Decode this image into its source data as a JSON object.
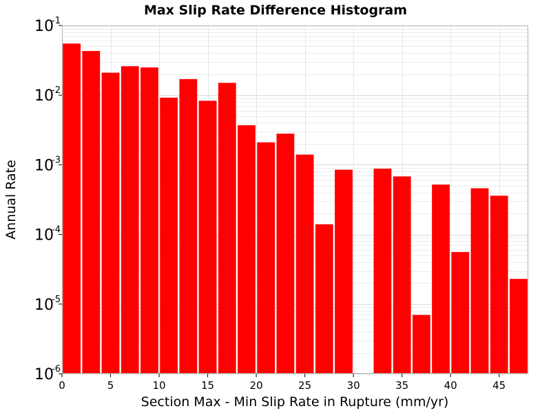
{
  "chart_data": {
    "type": "bar",
    "title": "Max Slip Rate Difference Histogram",
    "xlabel": "Section Max - Min Slip Rate in Rupture (mm/yr)",
    "ylabel": "Annual Rate",
    "yscale": "log",
    "xlim": [
      0,
      48
    ],
    "ylim": [
      1e-06,
      0.1
    ],
    "bin_width": 2,
    "x_ticks": [
      "0",
      "5",
      "10",
      "15",
      "20",
      "25",
      "30",
      "35",
      "40",
      "45"
    ],
    "y_ticks": [
      {
        "base": "10",
        "exp": "-6"
      },
      {
        "base": "10",
        "exp": "-5"
      },
      {
        "base": "10",
        "exp": "-4"
      },
      {
        "base": "10",
        "exp": "-3"
      },
      {
        "base": "10",
        "exp": "-2"
      },
      {
        "base": "10",
        "exp": "-1"
      }
    ],
    "grid": true,
    "bar_color": "#ff0000",
    "series": [
      {
        "bin_centers": [
          1,
          3,
          5,
          7,
          9,
          11,
          13,
          15,
          17,
          19,
          21,
          23,
          25,
          27,
          29,
          31,
          33,
          35,
          37,
          39,
          41,
          43,
          45,
          47
        ],
        "values": [
          0.055,
          0.043,
          0.021,
          0.026,
          0.025,
          0.0092,
          0.017,
          0.0083,
          0.015,
          0.0037,
          0.0021,
          0.0028,
          0.0014,
          0.00014,
          0.00085,
          null,
          0.00088,
          0.00068,
          7e-06,
          0.00052,
          5.6e-05,
          0.00046,
          0.00036,
          2.3e-05
        ]
      }
    ]
  }
}
